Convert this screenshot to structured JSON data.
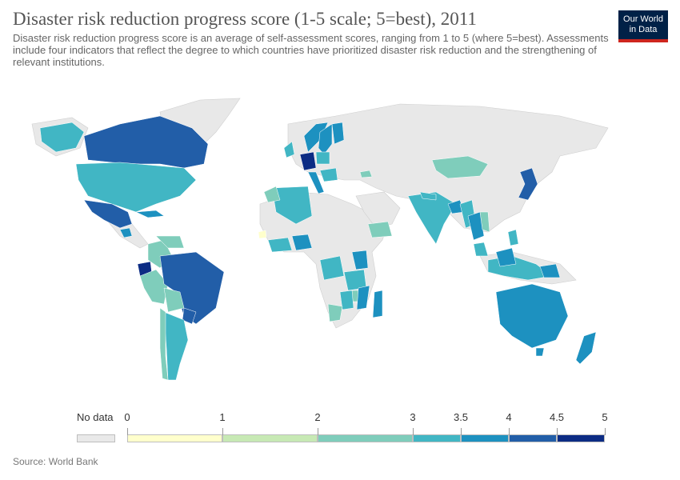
{
  "header": {
    "title": "Disaster risk reduction progress score (1-5 scale; 5=best), 2011",
    "subtitle": "Disaster risk reduction progress score is an average of self-assessment scores, ranging from 1 to 5 (where 5=best). Assessments include four indicators that reflect the degree to which countries have prioritized disaster risk reduction and the strengthening of relevant institutions."
  },
  "logo": {
    "line1": "Our World",
    "line2": "in Data",
    "bg": "#002147",
    "accent": "#ce261e"
  },
  "legend": {
    "no_data_label": "No data",
    "no_data_color": "#e9e9e9",
    "ticks": [
      "0",
      "1",
      "2",
      "3",
      "3.5",
      "4",
      "4.5",
      "5"
    ],
    "bins": [
      {
        "from": 0,
        "to": 1,
        "color": "#ffffcc"
      },
      {
        "from": 1,
        "to": 2,
        "color": "#c7e9b4"
      },
      {
        "from": 2,
        "to": 3,
        "color": "#7fcdbb"
      },
      {
        "from": 3,
        "to": 3.5,
        "color": "#41b6c4"
      },
      {
        "from": 3.5,
        "to": 4,
        "color": "#1d91c0"
      },
      {
        "from": 4,
        "to": 4.5,
        "color": "#225ea8"
      },
      {
        "from": 4.5,
        "to": 5,
        "color": "#0c2c84"
      }
    ]
  },
  "source": "Source: World Bank"
}
